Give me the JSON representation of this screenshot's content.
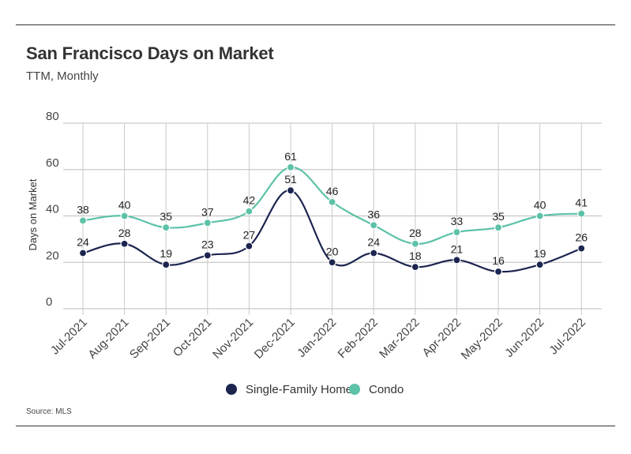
{
  "chart_data": {
    "type": "line",
    "title": "San Francisco Days on Market",
    "subtitle": "TTM, Monthly",
    "xlabel": "",
    "ylabel": "Days on Market",
    "ylim": [
      0,
      80
    ],
    "yticks": [
      "0",
      "20",
      "40",
      "60",
      "80"
    ],
    "grid": true,
    "legend_position": "bottom-center",
    "categories": [
      "Jul-2021",
      "Aug-2021",
      "Sep-2021",
      "Oct-2021",
      "Nov-2021",
      "Dec-2021",
      "Jan-2022",
      "Feb-2022",
      "Mar-2022",
      "Apr-2022",
      "May-2022",
      "Jun-2022",
      "Jul-2022"
    ],
    "series": [
      {
        "name": "Single-Family Home",
        "color": "#1c2550",
        "values": [
          24,
          28,
          19,
          23,
          27,
          51,
          20,
          24,
          18,
          21,
          16,
          19,
          26
        ]
      },
      {
        "name": "Condo",
        "color": "#5cc2a8",
        "values": [
          38,
          40,
          35,
          37,
          42,
          61,
          46,
          36,
          28,
          33,
          35,
          40,
          41
        ]
      }
    ],
    "source": "Source:  MLS"
  }
}
